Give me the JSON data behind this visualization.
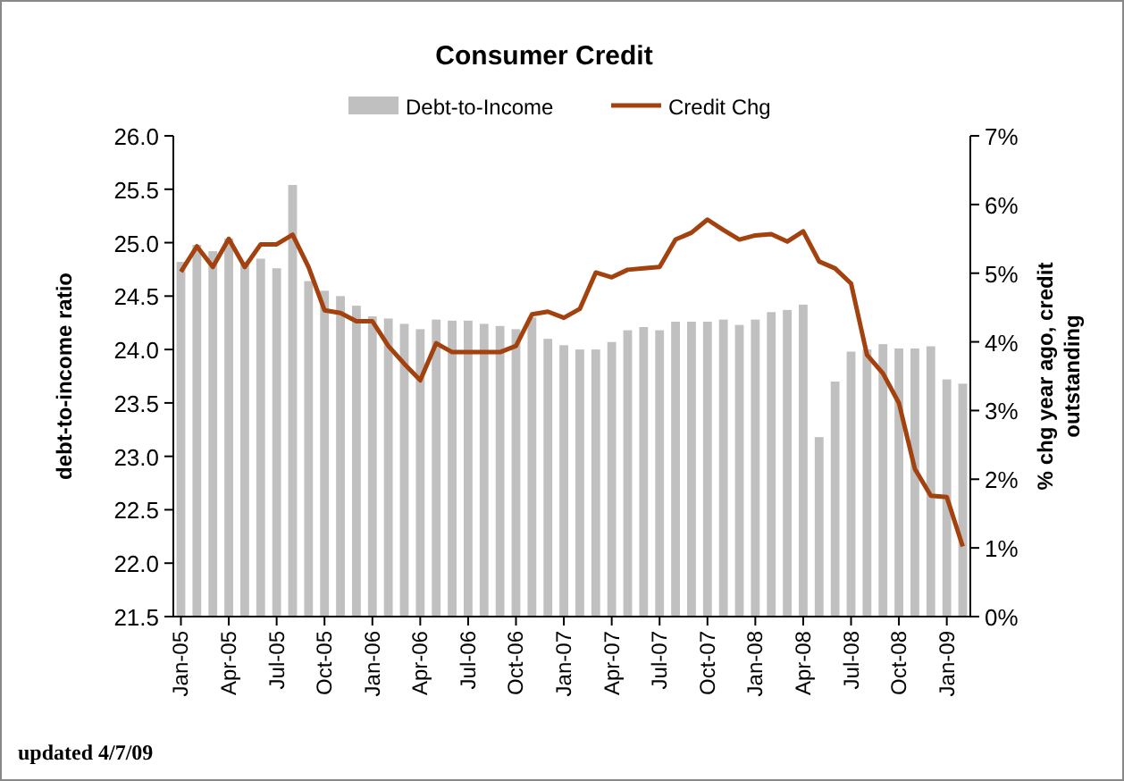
{
  "chart_data": {
    "type": "bar",
    "title": "Consumer Credit",
    "ylabel": "debt-to-income ratio",
    "y2label": "% chg year ago, credit outstanding",
    "categories": [
      "Jan-05",
      null,
      null,
      "Apr-05",
      null,
      null,
      "Jul-05",
      null,
      null,
      "Oct-05",
      null,
      null,
      "Jan-06",
      null,
      null,
      "Apr-06",
      null,
      null,
      "Jul-06",
      null,
      null,
      "Oct-06",
      null,
      null,
      "Jan-07",
      null,
      null,
      "Apr-07",
      null,
      null,
      "Jul-07",
      null,
      null,
      "Oct-07",
      null,
      null,
      "Jan-08",
      null,
      null,
      "Apr-08",
      null,
      null,
      "Jul-08",
      null,
      null,
      "Oct-08",
      null,
      null,
      "Jan-09",
      null
    ],
    "series": [
      {
        "name": "Debt-to-Income",
        "color": "#c0c0c0",
        "values": [
          24.82,
          24.98,
          24.92,
          25.04,
          24.82,
          24.85,
          24.76,
          25.54,
          24.64,
          24.55,
          24.5,
          24.41,
          24.31,
          24.29,
          24.24,
          24.19,
          24.28,
          24.27,
          24.27,
          24.24,
          24.22,
          24.19,
          24.3,
          24.1,
          24.04,
          24.0,
          24.0,
          24.07,
          24.18,
          24.21,
          24.18,
          24.26,
          24.26,
          24.26,
          24.28,
          24.23,
          24.28,
          24.35,
          24.37,
          24.42,
          23.18,
          23.7,
          23.98,
          24.0,
          24.05,
          24.01,
          24.01,
          24.03,
          23.72,
          23.68
        ]
      },
      {
        "name": "Credit Chg",
        "type": "line",
        "axis": "y2",
        "color": "#a3410f",
        "values": [
          5.02,
          5.39,
          5.09,
          5.5,
          5.09,
          5.42,
          5.42,
          5.56,
          5.09,
          4.46,
          4.42,
          4.3,
          4.3,
          3.94,
          3.68,
          3.44,
          3.98,
          3.85,
          3.85,
          3.85,
          3.85,
          3.94,
          4.4,
          4.44,
          4.35,
          4.48,
          5.01,
          4.94,
          5.05,
          5.07,
          5.09,
          5.49,
          5.59,
          5.78,
          5.63,
          5.49,
          5.55,
          5.57,
          5.46,
          5.61,
          5.17,
          5.07,
          4.85,
          3.81,
          3.54,
          3.11,
          2.15,
          1.76,
          1.74,
          1.02
        ]
      }
    ],
    "ylim": [
      21.5,
      26.0
    ],
    "yticks": [
      {
        "value": 21.5,
        "label": "21.5"
      },
      {
        "value": 22,
        "label": "22.0"
      },
      {
        "value": 22.5,
        "label": "22.5"
      },
      {
        "value": 23,
        "label": "23.0"
      },
      {
        "value": 23.5,
        "label": "23.5"
      },
      {
        "value": 24,
        "label": "24.0"
      },
      {
        "value": 24.5,
        "label": "24.5"
      },
      {
        "value": 25,
        "label": "25.0"
      },
      {
        "value": 25.5,
        "label": "25.5"
      },
      {
        "value": 26,
        "label": "26.0"
      }
    ],
    "y2lim": [
      0,
      7
    ],
    "y2ticks": [
      {
        "value": 0,
        "label": "0%"
      },
      {
        "value": 1,
        "label": "1%"
      },
      {
        "value": 2,
        "label": "2%"
      },
      {
        "value": 3,
        "label": "3%"
      },
      {
        "value": 4,
        "label": "4%"
      },
      {
        "value": 5,
        "label": "5%"
      },
      {
        "value": 6,
        "label": "6%"
      },
      {
        "value": 7,
        "label": "7%"
      }
    ],
    "legend": "top",
    "grid": false,
    "annotations": [
      "updated 4/7/09"
    ]
  }
}
